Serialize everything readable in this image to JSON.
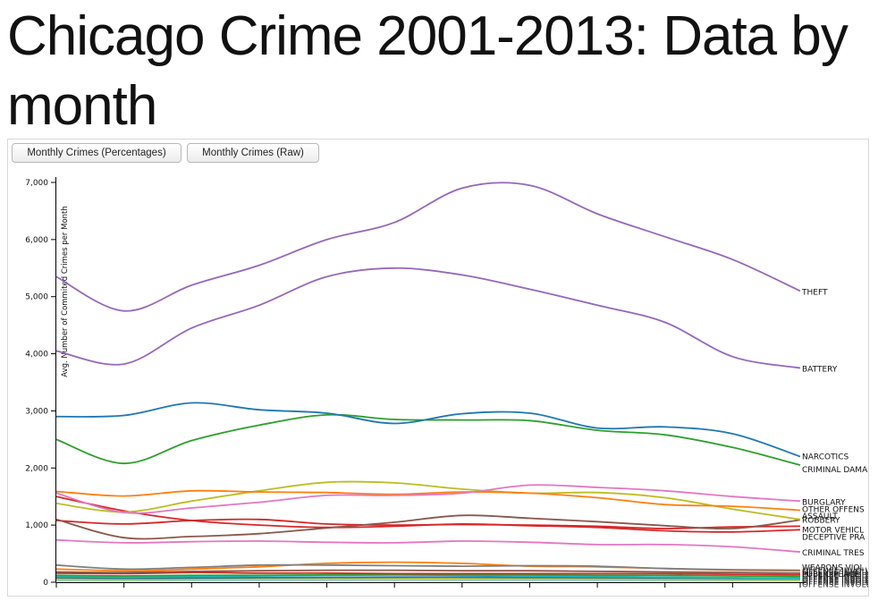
{
  "title": "Chicago Crime 2001-2013: Data by month",
  "controls": {
    "percentages_label": "Monthly Crimes (Percentages)",
    "raw_label": "Monthly Crimes (Raw)"
  },
  "chart_data": {
    "type": "line",
    "title": "Chicago Crime 2001-2013: Data by month",
    "ylabel": "Avg. Number of Commited Crimes per Month",
    "xlabel": "",
    "ylim": [
      0,
      7000
    ],
    "y_ticks": [
      0,
      1000,
      2000,
      3000,
      4000,
      5000,
      6000,
      7000
    ],
    "y_tick_labels": [
      "0",
      "1,000",
      "2,000",
      "3,000",
      "4,000",
      "5,000",
      "6,000",
      "7,000"
    ],
    "x": [
      1,
      2,
      3,
      4,
      5,
      6,
      7,
      8,
      9,
      10,
      11,
      12
    ],
    "grid": false,
    "series": [
      {
        "name": "THEFT",
        "color": "#9467bd",
        "values": [
          5350,
          4750,
          5200,
          5550,
          6000,
          6300,
          6900,
          6950,
          6450,
          6050,
          5650,
          5100
        ]
      },
      {
        "name": "BATTERY",
        "color": "#9467bd",
        "values": [
          4050,
          3820,
          4450,
          4850,
          5350,
          5500,
          5380,
          5130,
          4850,
          4550,
          3950,
          3750
        ]
      },
      {
        "name": "NARCOTICS",
        "color": "#1f77b4",
        "values": [
          2900,
          2920,
          3140,
          3020,
          2960,
          2780,
          2950,
          2960,
          2700,
          2720,
          2600,
          2200
        ]
      },
      {
        "name": "CRIMINAL DAMAGE",
        "color": "#2ca02c",
        "values": [
          2500,
          2080,
          2480,
          2750,
          2930,
          2850,
          2840,
          2830,
          2660,
          2580,
          2360,
          2050
        ]
      },
      {
        "name": "BURGLARY",
        "color": "#e377c2",
        "values": [
          1560,
          1220,
          1300,
          1400,
          1520,
          1520,
          1560,
          1700,
          1660,
          1600,
          1500,
          1420
        ]
      },
      {
        "name": "OTHER OFFENSE",
        "color": "#ff7f0e",
        "values": [
          1590,
          1510,
          1600,
          1580,
          1570,
          1540,
          1580,
          1560,
          1480,
          1360,
          1330,
          1260
        ]
      },
      {
        "name": "ASSAULT",
        "color": "#bcbd22",
        "values": [
          1380,
          1230,
          1420,
          1600,
          1750,
          1740,
          1630,
          1560,
          1570,
          1480,
          1280,
          1100
        ]
      },
      {
        "name": "ROBBERY",
        "color": "#8c564b",
        "values": [
          1100,
          780,
          800,
          850,
          950,
          1050,
          1170,
          1120,
          1060,
          990,
          940,
          1090
        ]
      },
      {
        "name": "MOTOR VEHICLE THEFT",
        "color": "#d62728",
        "values": [
          1080,
          1020,
          1080,
          1100,
          1020,
          1000,
          1010,
          1000,
          980,
          940,
          970,
          980
        ]
      },
      {
        "name": "DECEPTIVE PRACTICE",
        "color": "#d62728",
        "values": [
          1500,
          1250,
          1080,
          1000,
          960,
          980,
          1020,
          990,
          960,
          900,
          880,
          920
        ]
      },
      {
        "name": "CRIMINAL TRESPASS",
        "color": "#e377c2",
        "values": [
          740,
          690,
          710,
          720,
          700,
          690,
          720,
          700,
          660,
          660,
          620,
          530
        ]
      },
      {
        "name": "WEAPONS VIOLATION",
        "color": "#7f7f7f",
        "values": [
          300,
          230,
          260,
          300,
          300,
          290,
          280,
          290,
          280,
          240,
          220,
          210
        ]
      },
      {
        "name": "PUBLIC PEACE VIOLATION",
        "color": "#ff7f0e",
        "values": [
          230,
          200,
          230,
          270,
          330,
          350,
          330,
          280,
          270,
          240,
          210,
          200
        ]
      },
      {
        "name": "PROSTITUTION",
        "color": "#8c564b",
        "values": [
          180,
          170,
          190,
          200,
          210,
          210,
          200,
          200,
          190,
          180,
          170,
          160
        ]
      },
      {
        "name": "OFFENSE INVOLVING CHILDREN",
        "color": "#d62728",
        "values": [
          160,
          150,
          170,
          160,
          160,
          150,
          150,
          150,
          150,
          150,
          140,
          130
        ]
      },
      {
        "name": "SEX OFFENSE",
        "color": "#2ca02c",
        "values": [
          120,
          110,
          120,
          120,
          130,
          130,
          130,
          130,
          120,
          120,
          110,
          100
        ]
      },
      {
        "name": "GAMBLING",
        "color": "#17becf",
        "values": [
          100,
          90,
          100,
          110,
          120,
          130,
          120,
          110,
          100,
          90,
          80,
          70
        ]
      },
      {
        "name": "CRIM SEXUAL ASSAULT",
        "color": "#1f77b4",
        "values": [
          80,
          70,
          75,
          80,
          85,
          90,
          90,
          85,
          80,
          75,
          70,
          65
        ]
      },
      {
        "name": "LIQUOR LAW VIOLATION",
        "color": "#bcbd22",
        "values": [
          60,
          55,
          60,
          65,
          70,
          75,
          70,
          65,
          60,
          55,
          50,
          45
        ]
      },
      {
        "name": "INTERFERENCE WITH PUBLIC OFFICER",
        "color": "#98df8a",
        "values": [
          40,
          38,
          40,
          45,
          48,
          50,
          50,
          48,
          45,
          42,
          40,
          35
        ]
      },
      {
        "name": "ARSON",
        "color": "#aec7e8",
        "values": [
          25,
          22,
          25,
          28,
          30,
          32,
          30,
          28,
          26,
          24,
          22,
          20
        ]
      }
    ],
    "visible_labels": [
      "THEFT",
      "BATTERY",
      "NARCOTICS",
      "CRIMINAL DAMA",
      "BURGLARY",
      "OTHER OFFENS",
      "ASSAULT",
      "ROBBERY",
      "MOTOR VEHICL",
      "DECEPTIVE PRA",
      "CRIMINAL TRES",
      "WEAPONS VIOL",
      "PUBLIC PEACE"
    ]
  }
}
